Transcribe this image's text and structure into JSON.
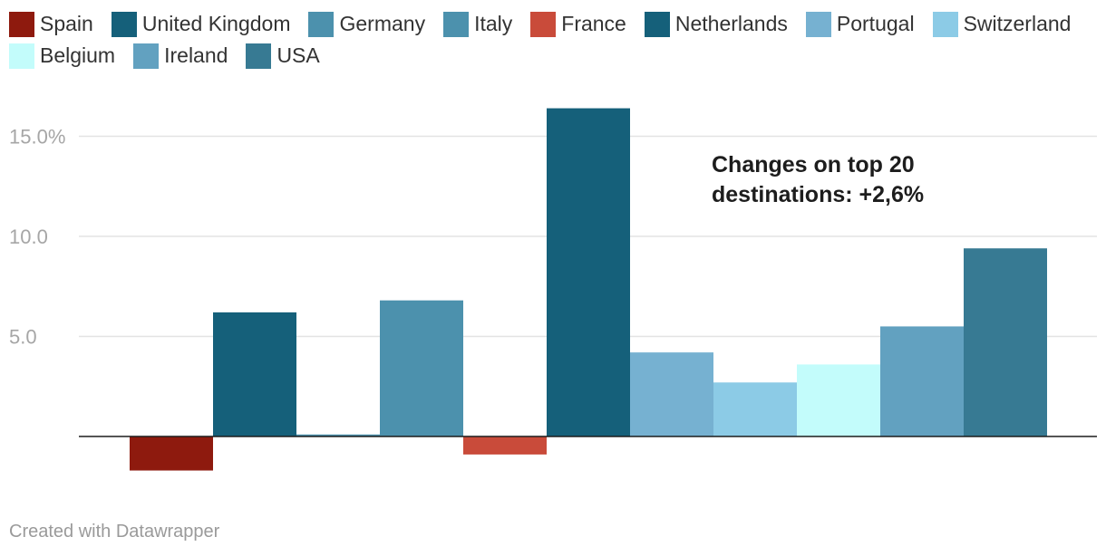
{
  "chart_data": {
    "type": "bar",
    "categories": [
      "Spain",
      "United Kingdom",
      "Germany",
      "Italy",
      "France",
      "Netherlands",
      "Portugal",
      "Switzerland",
      "Belgium",
      "Ireland",
      "USA"
    ],
    "values": [
      -1.7,
      6.2,
      0.1,
      6.8,
      -0.9,
      16.4,
      4.2,
      2.7,
      3.6,
      5.5,
      9.4
    ],
    "colors": [
      "#8e1a0e",
      "#15607a",
      "#4c91ad",
      "#4c91ad",
      "#c94b3a",
      "#15607a",
      "#76b1d1",
      "#8ccbe6",
      "#c3fcfb",
      "#62a1c0",
      "#377a93"
    ],
    "y_ticks": [
      {
        "value": 15,
        "label": "15.0%"
      },
      {
        "value": 10,
        "label": "10.0"
      },
      {
        "value": 5,
        "label": "5.0"
      }
    ],
    "ylim": [
      -3.3,
      17.7
    ],
    "grid": true,
    "legend_position": "top",
    "annotation": {
      "lines": [
        "Changes on top 20",
        "destinations: +2,6%"
      ]
    }
  },
  "footer": "Created with Datawrapper"
}
